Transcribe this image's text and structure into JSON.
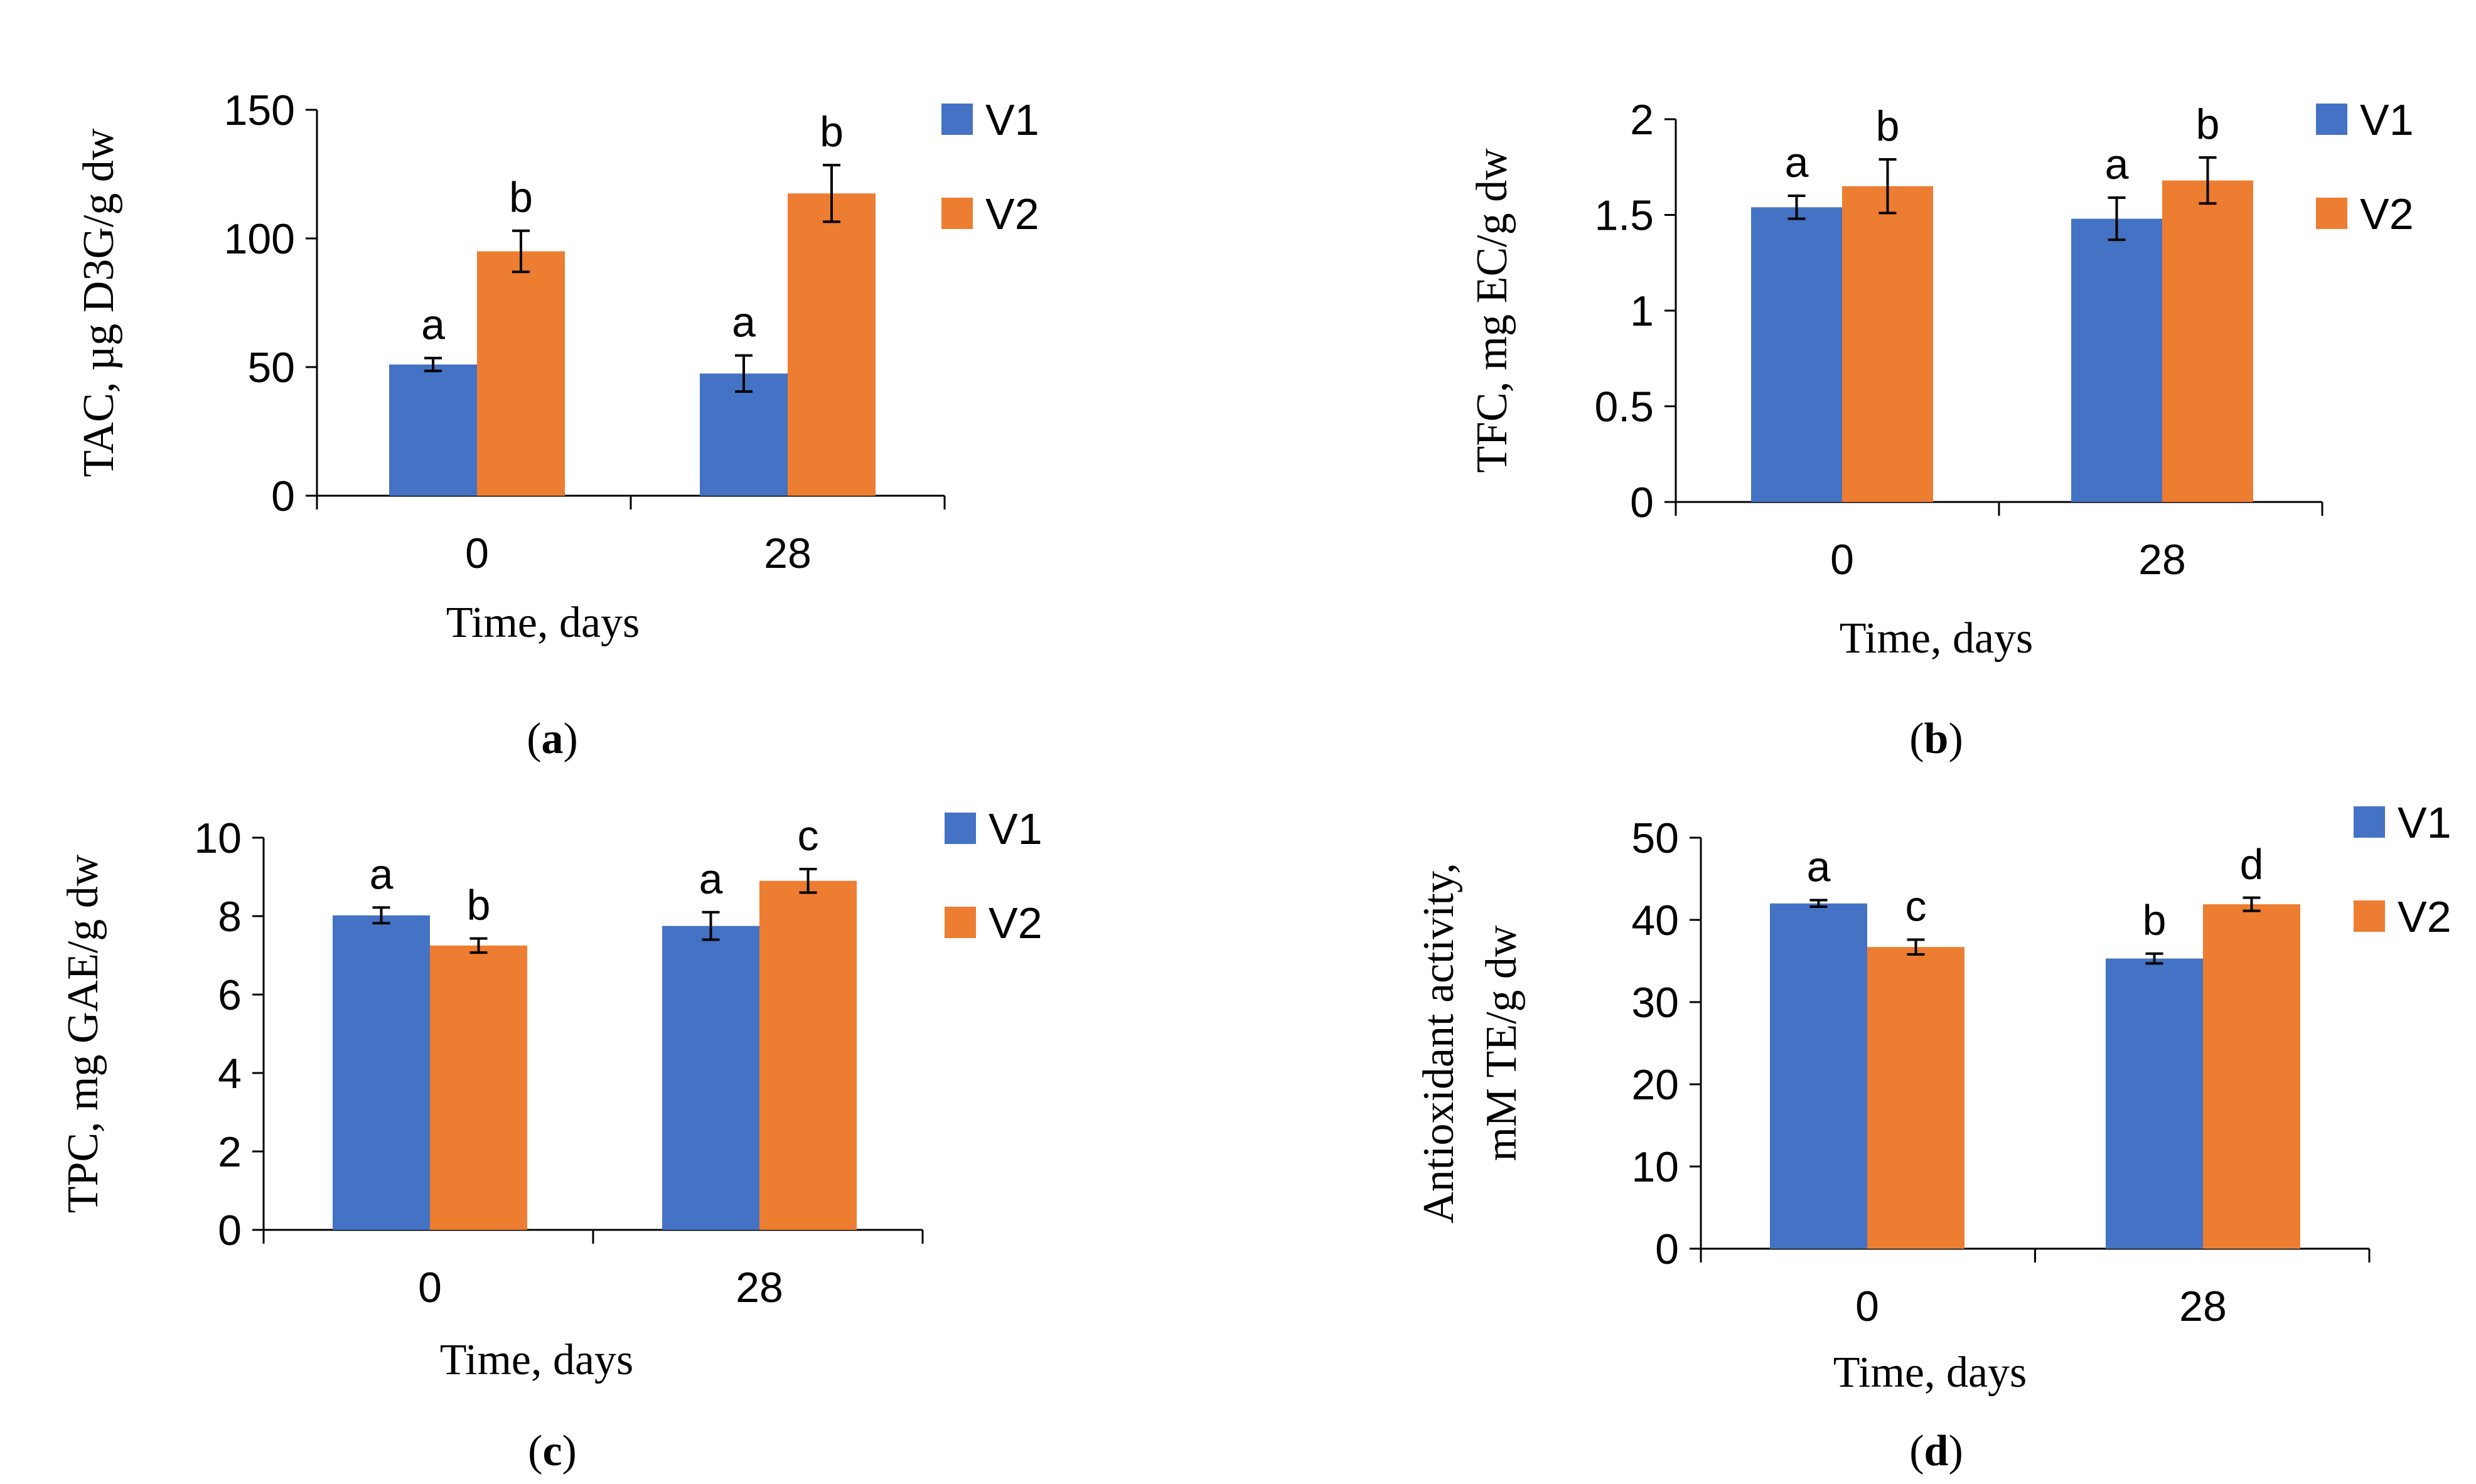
{
  "colors": {
    "V1": "#4472C4",
    "V2": "#ED7D31"
  },
  "chart_data": [
    {
      "panel": "a",
      "type": "bar",
      "categories": [
        "0",
        "28"
      ],
      "xlabel": "Time, days",
      "ylabel": "TAC, µg D3G/g dw",
      "ylim": [
        0,
        150
      ],
      "yticks": [
        "0",
        "50",
        "100",
        "150"
      ],
      "legend": [
        "V1",
        "V2"
      ],
      "series": [
        {
          "name": "V1",
          "values": [
            51,
            47.5
          ],
          "errors": [
            2.5,
            7
          ],
          "labels": [
            "a",
            "a"
          ]
        },
        {
          "name": "V2",
          "values": [
            95,
            117.5
          ],
          "errors": [
            8,
            11
          ],
          "labels": [
            "b",
            "b"
          ]
        }
      ]
    },
    {
      "panel": "b",
      "type": "bar",
      "categories": [
        "0",
        "28"
      ],
      "xlabel": "Time, days",
      "ylabel": "TFC, mg EC/g dw",
      "ylim": [
        0,
        2
      ],
      "yticks": [
        "0",
        "0.5",
        "1",
        "1.5",
        "2"
      ],
      "legend": [
        "V1",
        "V2"
      ],
      "series": [
        {
          "name": "V1",
          "values": [
            1.54,
            1.48
          ],
          "errors": [
            0.06,
            0.11
          ],
          "labels": [
            "a",
            "a"
          ]
        },
        {
          "name": "V2",
          "values": [
            1.65,
            1.68
          ],
          "errors": [
            0.14,
            0.12
          ],
          "labels": [
            "b",
            "b"
          ]
        }
      ]
    },
    {
      "panel": "c",
      "type": "bar",
      "categories": [
        "0",
        "28"
      ],
      "xlabel": "Time, days",
      "ylabel": "TPC, mg GAE/g dw",
      "ylim": [
        0,
        10
      ],
      "yticks": [
        "0",
        "2",
        "4",
        "6",
        "8",
        "10"
      ],
      "legend": [
        "V1",
        "V2"
      ],
      "series": [
        {
          "name": "V1",
          "values": [
            8.02,
            7.75
          ],
          "errors": [
            0.2,
            0.35
          ],
          "labels": [
            "a",
            "a"
          ]
        },
        {
          "name": "V2",
          "values": [
            7.25,
            8.9
          ],
          "errors": [
            0.18,
            0.3
          ],
          "labels": [
            "b",
            "c"
          ]
        }
      ]
    },
    {
      "panel": "d",
      "type": "bar",
      "categories": [
        "0",
        "28"
      ],
      "xlabel": "Time, days",
      "ylabel": "Antioxidant activity, mM TE/g dw",
      "ylabel_lines": [
        "Antioxidant activity,",
        "mM TE/g dw"
      ],
      "ylim": [
        0,
        50
      ],
      "yticks": [
        "0",
        "10",
        "20",
        "30",
        "40",
        "50"
      ],
      "legend": [
        "V1",
        "V2"
      ],
      "series": [
        {
          "name": "V1",
          "values": [
            42,
            35.3
          ],
          "errors": [
            0.4,
            0.6
          ],
          "labels": [
            "a",
            "b"
          ]
        },
        {
          "name": "V2",
          "values": [
            36.7,
            41.9
          ],
          "errors": [
            0.9,
            0.8
          ],
          "labels": [
            "c",
            "d"
          ]
        }
      ]
    }
  ]
}
